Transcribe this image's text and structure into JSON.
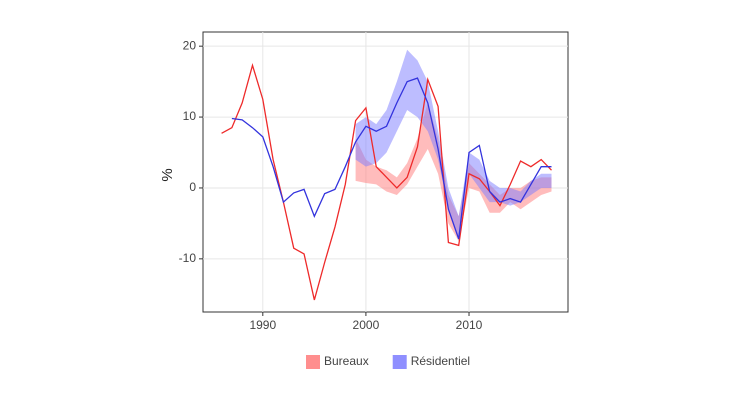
{
  "chart_data": {
    "type": "line-ribbon",
    "x": [
      1986,
      1987,
      1988,
      1989,
      1990,
      1991,
      1992,
      1993,
      1994,
      1995,
      1996,
      1997,
      1998,
      1999,
      2000,
      2001,
      2002,
      2003,
      2004,
      2005,
      2006,
      2007,
      2008,
      2009,
      2010,
      2011,
      2012,
      2013,
      2014,
      2015,
      2016,
      2017,
      2018
    ],
    "y_label": "%",
    "xlim": [
      1984.2,
      2019.6
    ],
    "ylim": [
      -17.5,
      22
    ],
    "xticks": [
      1990,
      2000,
      2010
    ],
    "yticks": [
      -10,
      0,
      10,
      20
    ],
    "grid": true,
    "legend": "bottom",
    "series": [
      {
        "name": "Bureaux",
        "color": "#ee2a2a",
        "fill_color": "#ff7a7a",
        "values": [
          7.7,
          8.5,
          12,
          17.3,
          12.5,
          4,
          -2,
          -8.5,
          -9.3,
          -15.8,
          -10.5,
          -5.5,
          0.5,
          9.5,
          11.3,
          3,
          1.5,
          0,
          1.5,
          5.8,
          15.3,
          11.5,
          -7.7,
          -8.1,
          2,
          1.3,
          -0.5,
          -2.5,
          0.5,
          3.8,
          3,
          4,
          2.5
        ],
        "lower": [
          null,
          null,
          null,
          null,
          null,
          null,
          null,
          null,
          null,
          null,
          null,
          null,
          null,
          1,
          0.7,
          0.5,
          -0.5,
          -1,
          0.5,
          3,
          5.5,
          2,
          -5,
          -7.5,
          0,
          -0.5,
          -3.5,
          -3.5,
          -2,
          -3,
          -2,
          -1,
          -0.5
        ],
        "upper": [
          null,
          null,
          null,
          null,
          null,
          null,
          null,
          null,
          null,
          null,
          null,
          null,
          null,
          7,
          4,
          3,
          2.5,
          1.5,
          3.5,
          7,
          12,
          7,
          -1,
          -4,
          3.5,
          2,
          0.5,
          -1,
          0,
          0,
          1,
          1.5,
          1.5
        ]
      },
      {
        "name": "Résidentiel",
        "color": "#3333dd",
        "fill_color": "#7b7bff",
        "values": [
          null,
          9.8,
          9.6,
          8.5,
          7.2,
          3,
          -2,
          -0.7,
          -0.2,
          -4,
          -0.8,
          -0.2,
          3,
          6.5,
          8.7,
          8,
          8.7,
          12,
          15,
          15.5,
          12,
          5.5,
          -3,
          -7.2,
          5,
          6,
          -0.5,
          -2,
          -1.5,
          -2,
          0.5,
          3,
          3
        ],
        "lower": [
          null,
          null,
          null,
          null,
          null,
          null,
          null,
          null,
          null,
          null,
          null,
          null,
          null,
          4,
          3,
          3.5,
          5,
          8,
          11,
          10,
          8,
          4,
          -3,
          -7,
          2,
          0,
          -2,
          -2,
          -2.5,
          -2,
          -1,
          0,
          0
        ],
        "upper": [
          null,
          null,
          null,
          null,
          null,
          null,
          null,
          null,
          null,
          null,
          null,
          null,
          null,
          9,
          10,
          9,
          11,
          15,
          19.5,
          18,
          15,
          8,
          0,
          -4,
          5,
          4,
          1,
          0,
          0,
          -0.5,
          1,
          2,
          2
        ]
      }
    ]
  }
}
